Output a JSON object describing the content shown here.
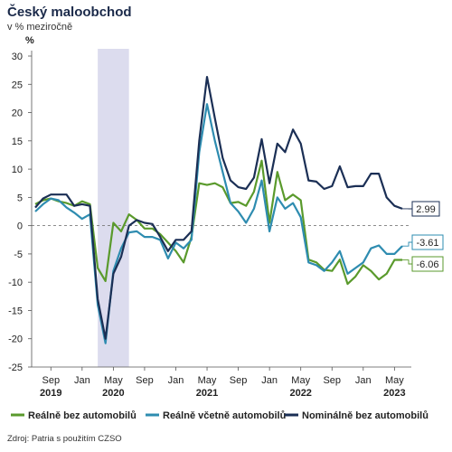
{
  "title": "Český maloobchod",
  "subtitle": "v % meziročně",
  "source": "Zdroj: Patria s použitím CZSO",
  "chart_data": {
    "type": "line",
    "y_unit": "%",
    "ylim": [
      -25,
      30
    ],
    "yticks": [
      30,
      25,
      20,
      15,
      10,
      5,
      0,
      -5,
      -10,
      -15,
      -20,
      -25
    ],
    "zero_line": "dashed",
    "shaded_period": {
      "start": "2020-03",
      "end": "2020-07"
    },
    "x_ticks": [
      {
        "label": "Sep",
        "year": "2019",
        "date": "2019-09"
      },
      {
        "label": "Jan",
        "year": "",
        "date": "2020-01"
      },
      {
        "label": "May",
        "year": "2020",
        "date": "2020-05"
      },
      {
        "label": "Sep",
        "year": "",
        "date": "2020-09"
      },
      {
        "label": "Jan",
        "year": "",
        "date": "2021-01"
      },
      {
        "label": "May",
        "year": "2021",
        "date": "2021-05"
      },
      {
        "label": "Sep",
        "year": "",
        "date": "2021-09"
      },
      {
        "label": "Jan",
        "year": "",
        "date": "2022-01"
      },
      {
        "label": "May",
        "year": "2022",
        "date": "2022-05"
      },
      {
        "label": "Sep",
        "year": "",
        "date": "2022-09"
      },
      {
        "label": "Jan",
        "year": "",
        "date": "2023-01"
      },
      {
        "label": "May",
        "year": "2023",
        "date": "2023-05"
      }
    ],
    "x": [
      "2019-07",
      "2019-08",
      "2019-09",
      "2019-10",
      "2019-11",
      "2019-12",
      "2020-01",
      "2020-02",
      "2020-03",
      "2020-04",
      "2020-05",
      "2020-06",
      "2020-07",
      "2020-08",
      "2020-09",
      "2020-10",
      "2020-11",
      "2020-12",
      "2021-01",
      "2021-02",
      "2021-03",
      "2021-04",
      "2021-05",
      "2021-06",
      "2021-07",
      "2021-08",
      "2021-09",
      "2021-10",
      "2021-11",
      "2021-12",
      "2022-01",
      "2022-02",
      "2022-03",
      "2022-04",
      "2022-05",
      "2022-06",
      "2022-07",
      "2022-08",
      "2022-09",
      "2022-10",
      "2022-11",
      "2022-12",
      "2023-01",
      "2023-02",
      "2023-03",
      "2023-04",
      "2023-05",
      "2023-06"
    ],
    "series": [
      {
        "name": "Reálně bez automobilů",
        "color": "#5a9a2c",
        "end_label": "-6.06",
        "values": [
          3.8,
          4.5,
          4.8,
          4.3,
          4.0,
          3.5,
          4.3,
          3.8,
          -7.5,
          -9.8,
          0.5,
          -1.0,
          2.0,
          1.0,
          -0.5,
          -0.5,
          -1.5,
          -3.0,
          -4.5,
          -6.5,
          -2.0,
          7.5,
          7.2,
          7.5,
          6.8,
          4.0,
          4.2,
          3.5,
          6.0,
          11.5,
          0.5,
          9.5,
          4.5,
          5.5,
          4.5,
          -6.0,
          -6.5,
          -7.8,
          -8.0,
          -6.0,
          -10.3,
          -9.0,
          -7.0,
          -8.0,
          -9.5,
          -8.5,
          -6.06,
          -6.06
        ]
      },
      {
        "name": "Reálně včetně automobilů",
        "color": "#2e8cb0",
        "end_label": "-3.61",
        "values": [
          2.5,
          3.8,
          4.8,
          4.5,
          3.2,
          2.3,
          1.2,
          2.0,
          -14.0,
          -20.8,
          -8.0,
          -4.0,
          -1.2,
          -1.0,
          -2.0,
          -2.0,
          -2.5,
          -5.8,
          -3.0,
          -4.0,
          -2.5,
          13.0,
          21.5,
          15.0,
          9.5,
          4.0,
          2.5,
          0.5,
          3.0,
          8.0,
          -1.0,
          5.0,
          3.0,
          4.0,
          1.5,
          -6.5,
          -7.0,
          -8.0,
          -6.5,
          -4.5,
          -8.5,
          -7.5,
          -6.5,
          -4.0,
          -3.5,
          -5.0,
          -5.0,
          -3.61
        ]
      },
      {
        "name": "Nominálně bez automobilů",
        "color": "#1b2f55",
        "end_label": "2.99",
        "values": [
          3.2,
          4.8,
          5.5,
          5.5,
          5.5,
          3.5,
          3.8,
          3.5,
          -13.0,
          -20.0,
          -8.5,
          -5.5,
          0.0,
          1.0,
          0.5,
          0.3,
          -2.0,
          -4.5,
          -2.5,
          -2.5,
          -1.0,
          15.0,
          26.3,
          19.0,
          12.0,
          8.0,
          6.8,
          6.5,
          8.5,
          15.3,
          7.5,
          14.5,
          13.0,
          17.0,
          14.5,
          8.0,
          7.8,
          6.5,
          7.0,
          10.5,
          6.8,
          7.0,
          7.0,
          9.2,
          9.2,
          5.0,
          3.5,
          2.99
        ]
      }
    ]
  }
}
